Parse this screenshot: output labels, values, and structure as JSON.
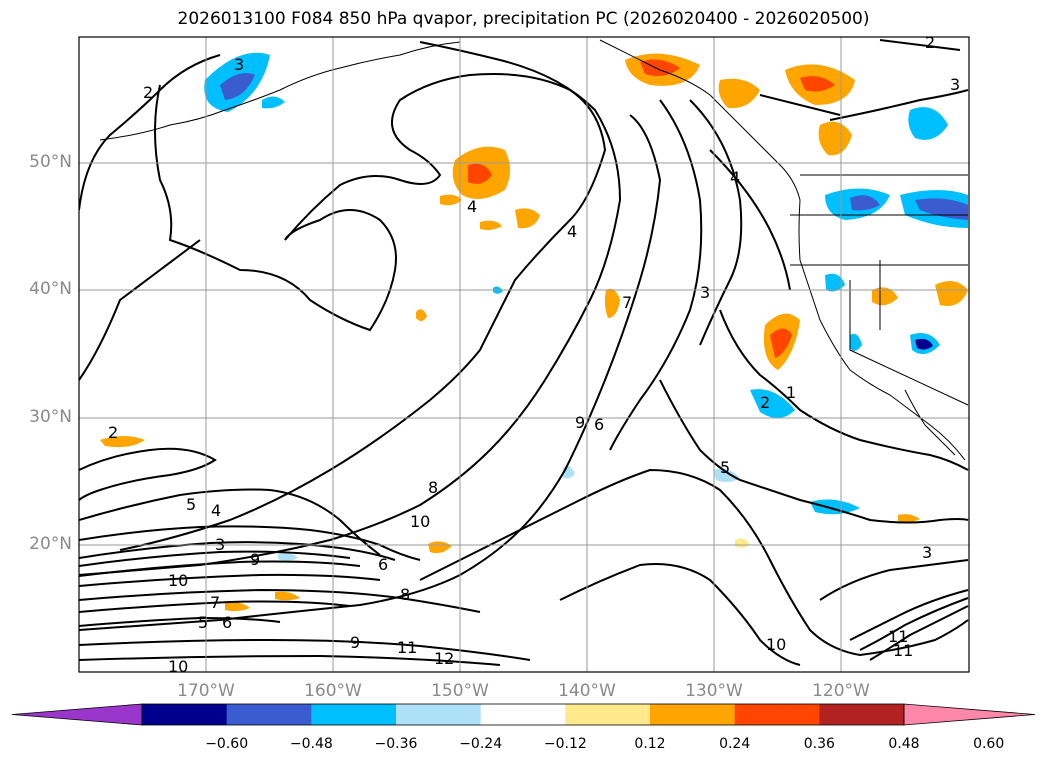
{
  "title": "2026013100 F084 850 hPa qvapor, precipitation PC (2026020400 - 2026020500)",
  "colors": {
    "frame": "#000000",
    "grid": "#9a9a9a",
    "contour": "#000000",
    "coast": "#000000",
    "tick_label": "#8a8a8a"
  },
  "lat_labels": [
    "50°N",
    "40°N",
    "30°N",
    "20°N"
  ],
  "lon_labels": [
    "170°W",
    "160°W",
    "150°W",
    "140°W",
    "130°W",
    "120°W"
  ],
  "contour_labels": [
    "2",
    "3",
    "4",
    "4",
    "4",
    "3",
    "2",
    "3",
    "2",
    "7",
    "1",
    "2",
    "9",
    "6",
    "5",
    "8",
    "10",
    "5",
    "4",
    "3",
    "9",
    "10",
    "7",
    "5",
    "6",
    "6",
    "8",
    "9",
    "11",
    "12",
    "10",
    "10",
    "11",
    "11",
    "3"
  ],
  "colorbar": {
    "tick_labels": [
      "−0.60",
      "−0.48",
      "−0.36",
      "−0.24",
      "−0.12",
      "0.12",
      "0.24",
      "0.36",
      "0.48",
      "0.60"
    ],
    "colors": [
      "#9a36cc",
      "#00008c",
      "#3a5cd0",
      "#00bfff",
      "#aee0f8",
      "#ffffff",
      "#ffe98c",
      "#ffa500",
      "#ff4500",
      "#b22222",
      "#ff88aa"
    ],
    "extend": "both"
  }
}
